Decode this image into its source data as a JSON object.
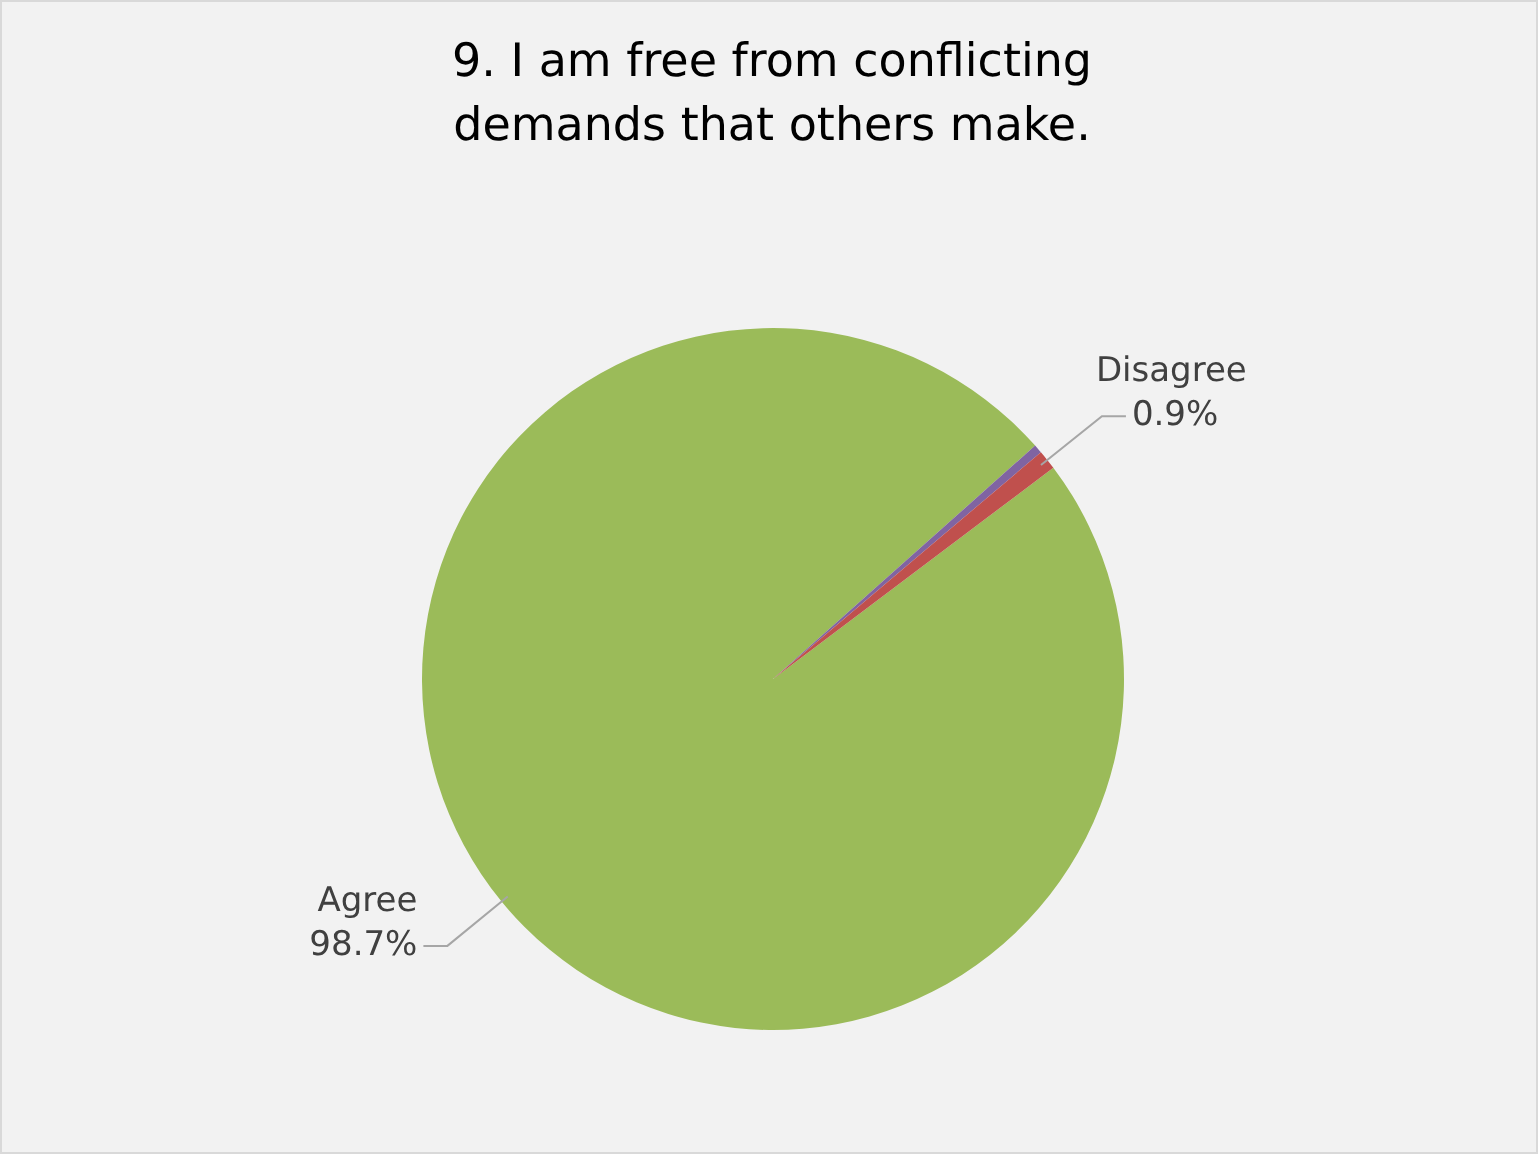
{
  "chart_data": {
    "type": "pie",
    "title": "9. I am free from conflicting demands that others make.",
    "categories": [
      "Agree",
      null,
      "Disagree"
    ],
    "values": [
      98.7,
      0.4,
      0.9
    ],
    "colors": [
      "#9bbb59",
      "#8064a2",
      "#c0504d"
    ],
    "value_labels": [
      "98.7%",
      null,
      "0.9%"
    ],
    "legend": false
  }
}
